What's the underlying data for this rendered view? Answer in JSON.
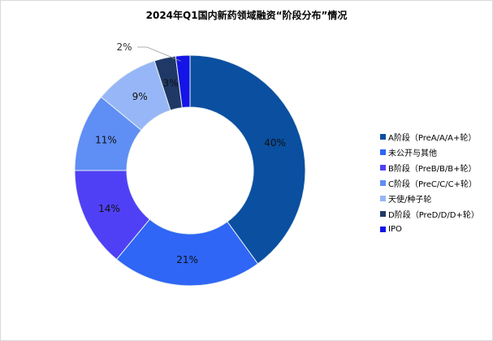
{
  "chart_data": {
    "type": "pie",
    "donut": true,
    "title": "2024年Q1国内新药领域融资“阶段分布”情况",
    "categories": [
      "A阶段（PreA/A/A+轮）",
      "未公开与其他",
      "B阶段（PreB/B/B+轮）",
      "C阶段（PreC/C/C+轮）",
      "天使/种子轮",
      "D阶段（PreD/D/D+轮）",
      "IPO"
    ],
    "values": [
      40,
      21,
      14,
      11,
      9,
      3,
      2
    ],
    "labels": [
      "40%",
      "21%",
      "14%",
      "11%",
      "9%",
      "3%",
      "2%"
    ],
    "colors": [
      "#0A4FA0",
      "#2F66F5",
      "#5040F5",
      "#5F8EF5",
      "#97B6F7",
      "#1F3866",
      "#1414E6"
    ],
    "legend_position": "right"
  }
}
